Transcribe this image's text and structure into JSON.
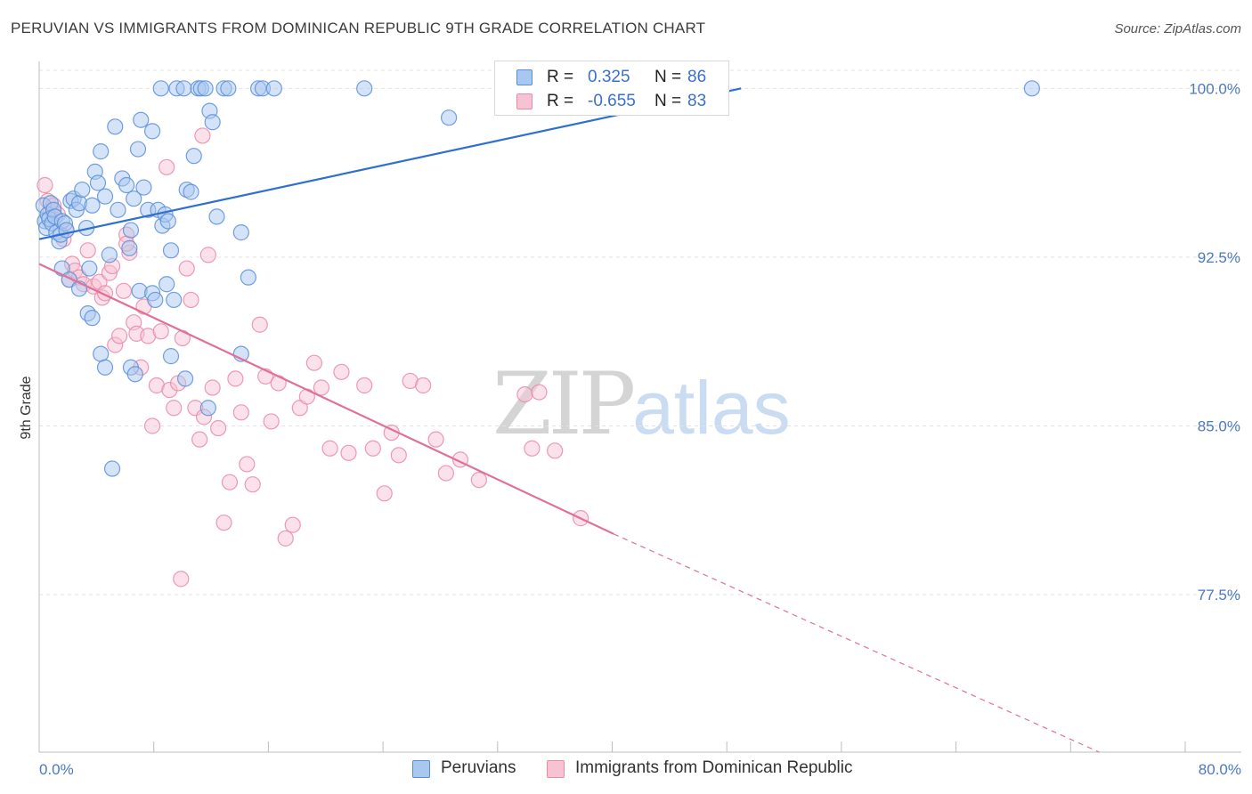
{
  "header": {
    "title": "PERUVIAN VS IMMIGRANTS FROM DOMINICAN REPUBLIC 9TH GRADE CORRELATION CHART",
    "source": "Source: ZipAtlas.com"
  },
  "watermark": {
    "zip": "ZIP",
    "atlas": "atlas"
  },
  "legend": {
    "rows": [
      {
        "r_label": "R =",
        "r_value": "0.325",
        "n_label": "N =",
        "n_value": "86"
      },
      {
        "r_label": "R =",
        "r_value": "-0.655",
        "n_label": "N =",
        "n_value": "83"
      }
    ],
    "bottom": [
      "Peruvians",
      "Immigrants from Dominican Republic"
    ]
  },
  "colors": {
    "blue_fill": "#a9c8f0",
    "blue_stroke": "#5a8fd8",
    "blue_line": "#2e6fd0",
    "pink_fill": "#f7c3d3",
    "pink_stroke": "#e98aa8",
    "pink_line": "#e0709a",
    "grid": "#e3e3e3",
    "tick_text": "#4a78c2"
  },
  "chart_data": {
    "type": "scatter",
    "title": "PERUVIAN VS IMMIGRANTS FROM DOMINICAN REPUBLIC 9TH GRADE CORRELATION CHART",
    "xlabel": "",
    "ylabel": "9th Grade",
    "xlim": [
      0,
      80
    ],
    "ylim": [
      70.5,
      101.2
    ],
    "x_tick_labels": [
      "0.0%",
      "80.0%"
    ],
    "y_ticks": [
      100.0,
      92.5,
      85.0,
      77.5
    ],
    "y_tick_labels": [
      "100.0%",
      "92.5%",
      "85.0%",
      "77.5%"
    ],
    "grid": true,
    "series": [
      {
        "name": "Peruvians",
        "r": 0.325,
        "n": 86,
        "trend": {
          "x0": 0.0,
          "y0": 93.3,
          "x1": 49.0,
          "y1": 100.0,
          "dashed_to": null
        },
        "points": [
          [
            0.3,
            94.8
          ],
          [
            0.4,
            94.1
          ],
          [
            0.5,
            93.8
          ],
          [
            0.6,
            94.4
          ],
          [
            0.7,
            94.2
          ],
          [
            0.8,
            94.9
          ],
          [
            0.9,
            94.0
          ],
          [
            1.0,
            94.6
          ],
          [
            1.1,
            94.3
          ],
          [
            1.2,
            93.6
          ],
          [
            1.4,
            93.2
          ],
          [
            1.5,
            93.5
          ],
          [
            1.6,
            94.1
          ],
          [
            1.8,
            94.0
          ],
          [
            1.9,
            93.7
          ],
          [
            2.2,
            95.0
          ],
          [
            2.4,
            95.1
          ],
          [
            2.6,
            94.6
          ],
          [
            2.8,
            94.9
          ],
          [
            3.0,
            95.5
          ],
          [
            3.3,
            93.8
          ],
          [
            3.5,
            92.0
          ],
          [
            3.7,
            94.8
          ],
          [
            3.9,
            96.3
          ],
          [
            4.1,
            95.8
          ],
          [
            4.3,
            97.2
          ],
          [
            4.6,
            95.2
          ],
          [
            4.9,
            92.6
          ],
          [
            5.3,
            98.3
          ],
          [
            5.5,
            94.6
          ],
          [
            5.8,
            96.0
          ],
          [
            6.1,
            95.7
          ],
          [
            6.3,
            92.9
          ],
          [
            6.6,
            95.1
          ],
          [
            6.9,
            97.3
          ],
          [
            7.1,
            98.6
          ],
          [
            7.3,
            95.6
          ],
          [
            7.6,
            94.6
          ],
          [
            7.9,
            98.1
          ],
          [
            8.3,
            94.6
          ],
          [
            8.6,
            93.9
          ],
          [
            8.8,
            94.4
          ],
          [
            9.0,
            94.1
          ],
          [
            9.2,
            92.8
          ],
          [
            8.5,
            100.0
          ],
          [
            9.6,
            100.0
          ],
          [
            10.1,
            100.0
          ],
          [
            10.3,
            95.5
          ],
          [
            10.6,
            95.4
          ],
          [
            11.1,
            100.0
          ],
          [
            11.3,
            100.0
          ],
          [
            11.6,
            100.0
          ],
          [
            11.9,
            99.0
          ],
          [
            12.1,
            98.5
          ],
          [
            12.4,
            94.3
          ],
          [
            12.9,
            100.0
          ],
          [
            13.2,
            100.0
          ],
          [
            14.1,
            93.6
          ],
          [
            15.3,
            100.0
          ],
          [
            15.6,
            100.0
          ],
          [
            16.4,
            100.0
          ],
          [
            22.7,
            100.0
          ],
          [
            28.6,
            98.7
          ],
          [
            69.3,
            100.0
          ],
          [
            1.6,
            92.0
          ],
          [
            2.1,
            91.5
          ],
          [
            2.8,
            91.1
          ],
          [
            3.4,
            90.0
          ],
          [
            3.7,
            89.8
          ],
          [
            4.3,
            88.2
          ],
          [
            4.6,
            87.6
          ],
          [
            5.1,
            83.1
          ],
          [
            6.4,
            87.6
          ],
          [
            6.7,
            87.3
          ],
          [
            7.0,
            91.0
          ],
          [
            7.9,
            90.9
          ],
          [
            8.1,
            90.6
          ],
          [
            8.9,
            91.3
          ],
          [
            9.4,
            90.6
          ],
          [
            9.2,
            88.1
          ],
          [
            10.2,
            87.1
          ],
          [
            11.8,
            85.8
          ],
          [
            14.1,
            88.2
          ],
          [
            14.6,
            91.6
          ],
          [
            10.8,
            97.0
          ],
          [
            6.4,
            93.7
          ]
        ]
      },
      {
        "name": "Immigrants from Dominican Republic",
        "r": -0.655,
        "n": 83,
        "trend": {
          "x0": 0.0,
          "y0": 92.2,
          "x1": 40.1,
          "y1": 80.2,
          "dashed_to": [
            74.0,
            70.5
          ]
        },
        "points": [
          [
            0.4,
            95.7
          ],
          [
            0.6,
            95.0
          ],
          [
            0.8,
            94.6
          ],
          [
            1.0,
            94.8
          ],
          [
            1.3,
            94.4
          ],
          [
            1.7,
            93.3
          ],
          [
            1.9,
            93.7
          ],
          [
            2.1,
            91.5
          ],
          [
            2.3,
            92.2
          ],
          [
            2.5,
            91.9
          ],
          [
            2.8,
            91.6
          ],
          [
            3.1,
            91.3
          ],
          [
            3.4,
            92.8
          ],
          [
            3.8,
            91.2
          ],
          [
            4.2,
            91.4
          ],
          [
            4.4,
            90.7
          ],
          [
            4.6,
            90.9
          ],
          [
            4.9,
            91.8
          ],
          [
            5.1,
            92.1
          ],
          [
            5.3,
            88.6
          ],
          [
            5.6,
            89.0
          ],
          [
            5.9,
            91.0
          ],
          [
            6.1,
            93.5
          ],
          [
            6.3,
            92.7
          ],
          [
            6.6,
            89.6
          ],
          [
            6.8,
            89.1
          ],
          [
            7.1,
            87.6
          ],
          [
            7.3,
            90.3
          ],
          [
            7.6,
            89.0
          ],
          [
            7.9,
            85.0
          ],
          [
            8.2,
            86.8
          ],
          [
            8.5,
            89.2
          ],
          [
            8.9,
            96.5
          ],
          [
            9.1,
            86.6
          ],
          [
            9.4,
            85.8
          ],
          [
            9.7,
            86.9
          ],
          [
            10.0,
            88.9
          ],
          [
            10.3,
            92.0
          ],
          [
            10.6,
            90.6
          ],
          [
            10.9,
            85.8
          ],
          [
            11.2,
            84.4
          ],
          [
            11.5,
            85.4
          ],
          [
            11.8,
            92.6
          ],
          [
            12.1,
            86.7
          ],
          [
            12.5,
            84.9
          ],
          [
            12.9,
            80.7
          ],
          [
            13.3,
            82.5
          ],
          [
            13.7,
            87.1
          ],
          [
            14.1,
            85.6
          ],
          [
            14.5,
            83.3
          ],
          [
            14.9,
            82.4
          ],
          [
            15.4,
            89.5
          ],
          [
            15.8,
            87.2
          ],
          [
            16.2,
            85.2
          ],
          [
            16.7,
            86.9
          ],
          [
            17.2,
            80.0
          ],
          [
            17.7,
            80.6
          ],
          [
            18.2,
            85.8
          ],
          [
            18.7,
            86.3
          ],
          [
            19.2,
            87.8
          ],
          [
            19.7,
            86.7
          ],
          [
            20.3,
            84.0
          ],
          [
            21.1,
            87.4
          ],
          [
            21.6,
            83.8
          ],
          [
            22.7,
            86.8
          ],
          [
            23.3,
            84.0
          ],
          [
            24.1,
            82.0
          ],
          [
            24.6,
            84.7
          ],
          [
            25.1,
            83.7
          ],
          [
            25.9,
            87.0
          ],
          [
            26.8,
            86.8
          ],
          [
            27.7,
            84.4
          ],
          [
            28.4,
            82.9
          ],
          [
            29.4,
            83.5
          ],
          [
            30.7,
            82.6
          ],
          [
            33.9,
            86.4
          ],
          [
            34.4,
            84.0
          ],
          [
            34.9,
            86.5
          ],
          [
            36.0,
            83.9
          ],
          [
            37.8,
            80.9
          ],
          [
            9.9,
            78.2
          ],
          [
            11.4,
            97.9
          ],
          [
            6.1,
            93.1
          ]
        ]
      }
    ]
  }
}
